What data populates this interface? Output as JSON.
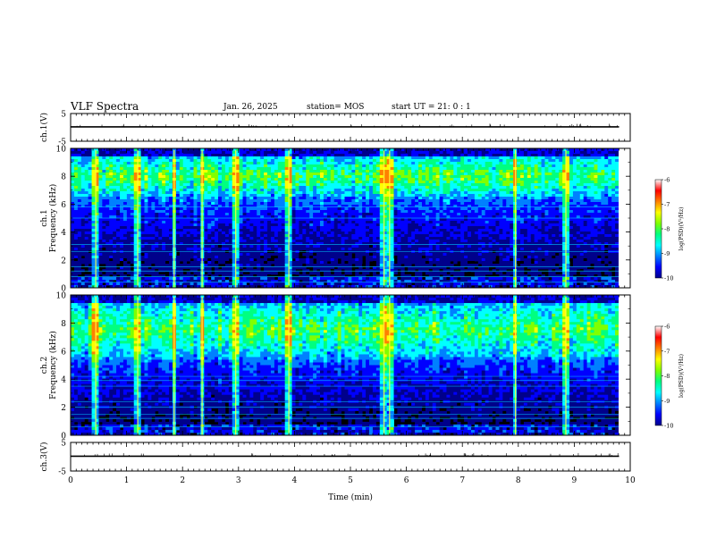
{
  "header": {
    "title": "VLF Spectra",
    "date": "Jan. 26, 2025",
    "station": "station= MOS",
    "start": "start  UT  =  21: 0  : 1"
  },
  "colors": {
    "background": "#000000",
    "colormap": [
      "#000000",
      "#00008b",
      "#0000ff",
      "#0080ff",
      "#00ffff",
      "#00ff80",
      "#80ff00",
      "#ffff00",
      "#ff8000",
      "#ff0000",
      "#ffffff"
    ]
  },
  "chart_data": [
    {
      "type": "line",
      "panel": "voltage-ch1",
      "ylabel": "ch.1(V)",
      "ylim": [
        -5,
        5
      ],
      "yticks": [
        5,
        -5
      ],
      "x": [
        0,
        2,
        4,
        6,
        8,
        9.8
      ],
      "values": [
        0.2,
        0.2,
        0.2,
        0.2,
        0.2,
        0.2
      ]
    },
    {
      "type": "heatmap",
      "panel": "spectrogram-ch1",
      "ylabel": "ch.1\nFrequency (kHz)",
      "ylim": [
        0,
        10
      ],
      "yticks": [
        0,
        2,
        4,
        6,
        8,
        10
      ],
      "colorbar": {
        "label": "log(PSD)(V²/Hz)",
        "range": [
          -10,
          -6
        ],
        "ticks": [
          -6,
          -7,
          -8,
          -9,
          -10
        ]
      },
      "intense_band_khz": [
        6.5,
        9.5
      ],
      "horizontal_lines_khz": [
        0.4,
        0.8,
        1.2,
        1.5,
        2.6,
        3.1,
        5.0,
        5.8
      ],
      "bursts_min": [
        0.45,
        1.2,
        1.85,
        2.35,
        2.95,
        3.9,
        5.6,
        5.7,
        7.95,
        8.85
      ]
    },
    {
      "type": "heatmap",
      "panel": "spectrogram-ch2",
      "ylabel": "ch.2\nFrequency (kHz)",
      "ylim": [
        0,
        10
      ],
      "yticks": [
        0,
        2,
        4,
        6,
        8,
        10
      ],
      "colorbar": {
        "label": "log(PSD)(V²/Hz)",
        "range": [
          -10,
          -6
        ],
        "ticks": [
          -6,
          -7,
          -8,
          -9,
          -10
        ]
      },
      "intense_band_khz": [
        5.5,
        9.5
      ],
      "horizontal_lines_khz": [
        0.6,
        1.2,
        1.5,
        2.0,
        2.4,
        3.5,
        3.9,
        4.2
      ],
      "bursts_min": [
        0.45,
        1.2,
        1.85,
        2.35,
        2.95,
        3.9,
        5.6,
        5.7,
        7.95,
        8.85
      ]
    },
    {
      "type": "line",
      "panel": "voltage-ch3",
      "ylabel": "ch.3(V)",
      "ylim": [
        -5,
        5
      ],
      "yticks": [
        5,
        -5
      ],
      "x": [
        0,
        2,
        4,
        6,
        8,
        9.8
      ],
      "values": [
        0.2,
        0.2,
        0.2,
        0.2,
        0.2,
        0.2
      ],
      "xlabel": "Time (min)",
      "xlim": [
        0,
        10
      ],
      "xticks": [
        0,
        1,
        2,
        3,
        4,
        5,
        6,
        7,
        8,
        9,
        10
      ]
    }
  ]
}
